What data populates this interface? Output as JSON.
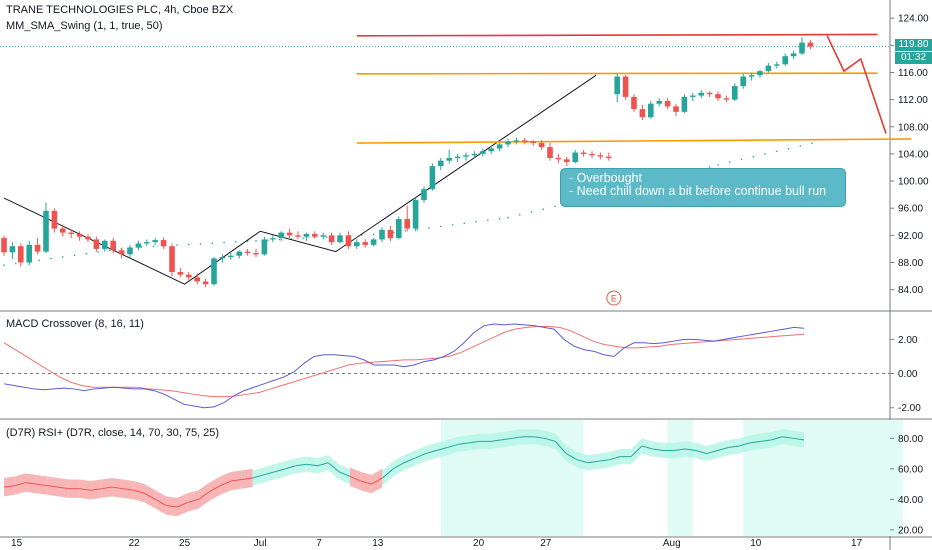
{
  "header": {
    "symbol_line": "TRANE TECHNOLOGIES PLC, 4h, Cboe BZX",
    "indicator_line": "MM_SMA_Swing (1, 1, true, 50)"
  },
  "price_tags": {
    "last_price": "119.80",
    "countdown": "01:32"
  },
  "annotation": {
    "line1": "- Overbought",
    "line2": "- Need chill down a bit before continue bull run"
  },
  "earnings_marker": "E",
  "panes": {
    "macd_title": "MACD Crossover (8, 16, 11)",
    "rsi_title": "(D7R) RSI+ (D7R, close, 14, 70, 30, 75, 25)"
  },
  "colors": {
    "up": "#26a69a",
    "down": "#ef5350",
    "resistance_top": "#e53935",
    "support_orange": "#ff9800",
    "projection": "#e53935",
    "macd_line": "#5b5bd6",
    "signal_line": "#f07070",
    "rsi_bull_fill": "#b2f5e6",
    "rsi_bear_fill": "#f5a3a3",
    "highlight_band": "#e0fbf4"
  },
  "chart_data": [
    {
      "type": "candlestick",
      "pane": "price",
      "ylim": [
        81,
        125.5
      ],
      "y_ticks": [
        84.0,
        88.0,
        92.0,
        96.0,
        100.0,
        104.0,
        108.0,
        112.0,
        116.0,
        120.0,
        124.0
      ],
      "x_ticks": [
        "15",
        "22",
        "25",
        "Jul",
        "7",
        "13",
        "20",
        "27",
        "Aug",
        "10",
        "17"
      ],
      "x_tick_index": [
        1.5,
        15.5,
        21.5,
        30.5,
        37.5,
        44.5,
        56.5,
        64.5,
        79.5,
        89.5,
        101.5
      ],
      "last_price": 119.8,
      "candles": [
        {
          "o": 91.6,
          "h": 92.0,
          "l": 89.0,
          "c": 89.5
        },
        {
          "o": 89.5,
          "h": 91.0,
          "l": 88.5,
          "c": 90.4
        },
        {
          "o": 90.4,
          "h": 90.8,
          "l": 87.4,
          "c": 88.0
        },
        {
          "o": 88.0,
          "h": 91.2,
          "l": 87.6,
          "c": 90.6
        },
        {
          "o": 90.6,
          "h": 91.6,
          "l": 89.2,
          "c": 89.6
        },
        {
          "o": 89.6,
          "h": 96.8,
          "l": 89.4,
          "c": 95.6
        },
        {
          "o": 95.6,
          "h": 96.0,
          "l": 92.4,
          "c": 93.0
        },
        {
          "o": 93.0,
          "h": 93.6,
          "l": 91.8,
          "c": 92.4
        },
        {
          "o": 92.4,
          "h": 92.8,
          "l": 91.6,
          "c": 92.2
        },
        {
          "o": 92.2,
          "h": 92.6,
          "l": 91.2,
          "c": 91.8
        },
        {
          "o": 91.8,
          "h": 92.2,
          "l": 91.0,
          "c": 91.4
        },
        {
          "o": 91.4,
          "h": 91.8,
          "l": 89.6,
          "c": 90.0
        },
        {
          "o": 90.0,
          "h": 91.4,
          "l": 89.6,
          "c": 91.2
        },
        {
          "o": 91.2,
          "h": 91.6,
          "l": 89.4,
          "c": 89.8
        },
        {
          "o": 89.8,
          "h": 90.2,
          "l": 88.6,
          "c": 89.2
        },
        {
          "o": 89.2,
          "h": 90.6,
          "l": 88.8,
          "c": 90.2
        },
        {
          "o": 90.2,
          "h": 91.2,
          "l": 89.8,
          "c": 90.8
        },
        {
          "o": 90.8,
          "h": 91.4,
          "l": 90.4,
          "c": 91.0
        },
        {
          "o": 91.0,
          "h": 91.6,
          "l": 90.6,
          "c": 91.3
        },
        {
          "o": 91.3,
          "h": 91.7,
          "l": 90.0,
          "c": 90.4
        },
        {
          "o": 90.4,
          "h": 90.8,
          "l": 86.0,
          "c": 86.6
        },
        {
          "o": 86.6,
          "h": 87.2,
          "l": 85.8,
          "c": 86.2
        },
        {
          "o": 86.2,
          "h": 86.6,
          "l": 85.4,
          "c": 85.8
        },
        {
          "o": 85.8,
          "h": 86.4,
          "l": 84.8,
          "c": 85.2
        },
        {
          "o": 85.2,
          "h": 85.6,
          "l": 84.4,
          "c": 84.8
        },
        {
          "o": 84.8,
          "h": 88.8,
          "l": 84.6,
          "c": 88.6
        },
        {
          "o": 88.6,
          "h": 89.2,
          "l": 88.0,
          "c": 88.8
        },
        {
          "o": 88.8,
          "h": 89.4,
          "l": 88.4,
          "c": 89.0
        },
        {
          "o": 89.0,
          "h": 89.8,
          "l": 88.6,
          "c": 89.6
        },
        {
          "o": 89.6,
          "h": 90.0,
          "l": 89.0,
          "c": 89.4
        },
        {
          "o": 89.4,
          "h": 90.0,
          "l": 88.8,
          "c": 89.2
        },
        {
          "o": 89.2,
          "h": 91.8,
          "l": 89.0,
          "c": 91.4
        },
        {
          "o": 91.4,
          "h": 92.0,
          "l": 91.0,
          "c": 91.6
        },
        {
          "o": 91.6,
          "h": 92.6,
          "l": 91.2,
          "c": 92.4
        },
        {
          "o": 92.4,
          "h": 93.0,
          "l": 91.6,
          "c": 92.0
        },
        {
          "o": 92.0,
          "h": 92.6,
          "l": 91.4,
          "c": 91.8
        },
        {
          "o": 91.8,
          "h": 92.4,
          "l": 91.2,
          "c": 92.2
        },
        {
          "o": 92.2,
          "h": 92.6,
          "l": 91.6,
          "c": 91.8
        },
        {
          "o": 91.8,
          "h": 92.4,
          "l": 91.4,
          "c": 92.0
        },
        {
          "o": 92.0,
          "h": 92.4,
          "l": 90.6,
          "c": 91.0
        },
        {
          "o": 91.0,
          "h": 92.4,
          "l": 90.8,
          "c": 92.0
        },
        {
          "o": 92.0,
          "h": 92.6,
          "l": 90.0,
          "c": 90.4
        },
        {
          "o": 90.4,
          "h": 91.4,
          "l": 90.0,
          "c": 91.0
        },
        {
          "o": 91.0,
          "h": 91.4,
          "l": 90.2,
          "c": 90.6
        },
        {
          "o": 90.6,
          "h": 91.6,
          "l": 90.4,
          "c": 91.4
        },
        {
          "o": 91.4,
          "h": 93.2,
          "l": 91.0,
          "c": 92.8
        },
        {
          "o": 92.8,
          "h": 93.4,
          "l": 91.2,
          "c": 91.6
        },
        {
          "o": 91.6,
          "h": 94.8,
          "l": 91.4,
          "c": 94.4
        },
        {
          "o": 94.4,
          "h": 96.4,
          "l": 92.6,
          "c": 93.0
        },
        {
          "o": 93.0,
          "h": 97.6,
          "l": 92.6,
          "c": 97.2
        },
        {
          "o": 97.2,
          "h": 99.2,
          "l": 96.8,
          "c": 98.8
        },
        {
          "o": 98.8,
          "h": 102.6,
          "l": 98.6,
          "c": 102.2
        },
        {
          "o": 102.2,
          "h": 103.4,
          "l": 101.6,
          "c": 103.0
        },
        {
          "o": 103.0,
          "h": 104.6,
          "l": 102.6,
          "c": 103.4
        },
        {
          "o": 103.4,
          "h": 104.0,
          "l": 102.8,
          "c": 103.6
        },
        {
          "o": 103.6,
          "h": 104.2,
          "l": 103.0,
          "c": 103.8
        },
        {
          "o": 103.8,
          "h": 104.4,
          "l": 103.4,
          "c": 104.0
        },
        {
          "o": 104.0,
          "h": 104.8,
          "l": 103.6,
          "c": 104.4
        },
        {
          "o": 104.4,
          "h": 105.2,
          "l": 104.0,
          "c": 104.8
        },
        {
          "o": 104.8,
          "h": 105.6,
          "l": 104.4,
          "c": 105.4
        },
        {
          "o": 105.4,
          "h": 106.2,
          "l": 105.0,
          "c": 105.8
        },
        {
          "o": 105.8,
          "h": 106.4,
          "l": 105.4,
          "c": 106.0
        },
        {
          "o": 106.0,
          "h": 106.4,
          "l": 105.4,
          "c": 105.8
        },
        {
          "o": 105.8,
          "h": 106.0,
          "l": 105.2,
          "c": 105.6
        },
        {
          "o": 105.6,
          "h": 106.0,
          "l": 104.6,
          "c": 105.0
        },
        {
          "o": 105.0,
          "h": 105.6,
          "l": 103.0,
          "c": 103.4
        },
        {
          "o": 103.4,
          "h": 104.0,
          "l": 102.6,
          "c": 103.2
        },
        {
          "o": 103.2,
          "h": 103.6,
          "l": 102.2,
          "c": 102.8
        },
        {
          "o": 102.8,
          "h": 104.6,
          "l": 102.6,
          "c": 104.2
        },
        {
          "o": 104.2,
          "h": 104.6,
          "l": 103.6,
          "c": 104.0
        },
        {
          "o": 104.0,
          "h": 104.4,
          "l": 103.4,
          "c": 103.8
        },
        {
          "o": 103.8,
          "h": 104.2,
          "l": 103.2,
          "c": 103.6
        },
        {
          "o": 103.6,
          "h": 104.2,
          "l": 103.0,
          "c": 103.4
        },
        {
          "o": 112.8,
          "h": 115.8,
          "l": 111.6,
          "c": 115.4
        },
        {
          "o": 115.4,
          "h": 115.6,
          "l": 112.0,
          "c": 112.4
        },
        {
          "o": 112.4,
          "h": 112.8,
          "l": 110.2,
          "c": 110.6
        },
        {
          "o": 110.6,
          "h": 111.2,
          "l": 109.0,
          "c": 109.4
        },
        {
          "o": 109.4,
          "h": 111.8,
          "l": 109.2,
          "c": 111.4
        },
        {
          "o": 111.4,
          "h": 112.2,
          "l": 111.0,
          "c": 111.8
        },
        {
          "o": 111.8,
          "h": 112.2,
          "l": 110.6,
          "c": 111.0
        },
        {
          "o": 111.0,
          "h": 111.4,
          "l": 109.6,
          "c": 110.2
        },
        {
          "o": 110.2,
          "h": 112.8,
          "l": 110.0,
          "c": 112.4
        },
        {
          "o": 112.4,
          "h": 113.0,
          "l": 111.8,
          "c": 112.6
        },
        {
          "o": 112.6,
          "h": 113.4,
          "l": 112.2,
          "c": 113.0
        },
        {
          "o": 113.0,
          "h": 113.2,
          "l": 112.4,
          "c": 112.8
        },
        {
          "o": 112.8,
          "h": 113.2,
          "l": 111.8,
          "c": 112.2
        },
        {
          "o": 112.2,
          "h": 112.6,
          "l": 111.6,
          "c": 112.0
        },
        {
          "o": 112.0,
          "h": 114.4,
          "l": 111.8,
          "c": 114.0
        },
        {
          "o": 114.0,
          "h": 115.8,
          "l": 113.6,
          "c": 115.4
        },
        {
          "o": 115.4,
          "h": 116.0,
          "l": 114.8,
          "c": 115.6
        },
        {
          "o": 115.6,
          "h": 116.4,
          "l": 115.2,
          "c": 116.2
        },
        {
          "o": 116.2,
          "h": 117.4,
          "l": 116.0,
          "c": 117.0
        },
        {
          "o": 117.0,
          "h": 117.6,
          "l": 116.6,
          "c": 117.2
        },
        {
          "o": 117.2,
          "h": 118.8,
          "l": 117.0,
          "c": 118.4
        },
        {
          "o": 118.4,
          "h": 119.2,
          "l": 118.0,
          "c": 118.8
        },
        {
          "o": 118.8,
          "h": 121.2,
          "l": 118.6,
          "c": 120.4
        },
        {
          "o": 120.4,
          "h": 120.8,
          "l": 119.4,
          "c": 119.8
        }
      ],
      "swing_line": [
        [
          0,
          97.5
        ],
        [
          21.5,
          84.8
        ],
        [
          30.5,
          92.6
        ],
        [
          39.5,
          89.6
        ],
        [
          70.5,
          115.6
        ]
      ],
      "dotted_sma": [
        [
          0,
          87.6
        ],
        [
          15,
          90.2
        ],
        [
          30,
          91.2
        ],
        [
          45,
          92.2
        ],
        [
          60,
          94.6
        ],
        [
          70,
          97.6
        ],
        [
          85,
          102.4
        ],
        [
          97,
          105.8
        ]
      ],
      "resistance_line": {
        "from": [
          42,
          121.4
        ],
        "to": [
          104,
          121.6
        ]
      },
      "support_line_upper": {
        "from": [
          42,
          115.8
        ],
        "to": [
          104,
          115.9
        ]
      },
      "support_line_lower": {
        "from": [
          42,
          105.6
        ],
        "to": [
          108,
          106.2
        ]
      },
      "projection_path": [
        [
          98,
          121.4
        ],
        [
          100,
          116.2
        ],
        [
          102,
          118.0
        ],
        [
          105,
          107.0
        ]
      ]
    },
    {
      "type": "line",
      "pane": "macd",
      "ylim": [
        -2.6,
        3.6
      ],
      "y_ticks": [
        -2.0,
        0.0,
        2.0
      ],
      "series": [
        {
          "values": [
            -0.6,
            -0.7,
            -0.8,
            -0.9,
            -0.95,
            -0.9,
            -0.85,
            -0.9,
            -1.0,
            -0.9,
            -0.85,
            -0.8,
            -0.85,
            -0.9,
            -0.9,
            -1.0,
            -1.2,
            -1.5,
            -1.8,
            -1.9,
            -2.0,
            -1.95,
            -1.7,
            -1.3,
            -1.0,
            -0.8,
            -0.6,
            -0.4,
            -0.2,
            0.1,
            0.6,
            1.0,
            1.1,
            1.1,
            1.05,
            1.0,
            0.8,
            0.5,
            0.5,
            0.5,
            0.4,
            0.5,
            0.7,
            0.8,
            1.0,
            1.3,
            1.8,
            2.4,
            2.8,
            2.9,
            2.85,
            2.9,
            2.85,
            2.8,
            2.7,
            2.6,
            2.0,
            1.6,
            1.4,
            1.3,
            1.1,
            1.0,
            1.5,
            1.8,
            1.8,
            1.75,
            1.8,
            1.9,
            2.0,
            2.0,
            1.95,
            1.9,
            2.0,
            2.1,
            2.2,
            2.3,
            2.4,
            2.5,
            2.6,
            2.7,
            2.65
          ]
        },
        {
          "values": [
            1.8,
            1.4,
            1.0,
            0.6,
            0.2,
            -0.2,
            -0.5,
            -0.7,
            -0.8,
            -0.8,
            -0.8,
            -0.8,
            -0.8,
            -0.9,
            -0.95,
            -1.0,
            -1.1,
            -1.2,
            -1.3,
            -1.35,
            -1.35,
            -1.3,
            -1.2,
            -1.1,
            -0.9,
            -0.7,
            -0.5,
            -0.3,
            -0.1,
            0.1,
            0.3,
            0.5,
            0.6,
            0.65,
            0.7,
            0.75,
            0.8,
            0.8,
            0.85,
            0.9,
            1.0,
            1.2,
            1.5,
            1.8,
            2.1,
            2.4,
            2.6,
            2.7,
            2.75,
            2.75,
            2.7,
            2.5,
            2.2,
            1.9,
            1.7,
            1.6,
            1.5,
            1.5,
            1.55,
            1.6,
            1.7,
            1.75,
            1.8,
            1.85,
            1.9,
            1.95,
            2.0,
            2.05,
            2.1,
            2.15,
            2.2,
            2.25,
            2.3
          ]
        }
      ]
    },
    {
      "type": "area",
      "pane": "rsi",
      "ylim": [
        16,
        92
      ],
      "y_ticks": [
        20.0,
        40.0,
        60.0,
        80.0
      ],
      "series": [
        {
          "values": [
            48,
            49,
            51,
            50,
            49,
            48,
            47,
            47,
            46,
            47,
            48,
            47,
            46,
            44,
            40,
            36,
            35,
            38,
            40,
            45,
            49,
            52,
            53,
            54,
            56,
            58,
            60,
            62,
            63,
            62,
            64,
            58,
            55,
            52,
            50,
            54,
            60,
            64,
            67,
            70,
            72,
            74,
            76,
            77,
            78,
            78,
            79,
            80,
            81,
            81,
            80,
            78,
            70,
            66,
            64,
            65,
            66,
            68,
            68,
            75,
            73,
            72,
            72,
            73,
            72,
            70,
            72,
            74,
            75,
            77,
            78,
            79,
            81,
            80,
            79
          ]
        }
      ],
      "highlight_ranges": [
        [
          52,
          69
        ],
        [
          79,
          82
        ],
        [
          88,
          107
        ]
      ]
    }
  ]
}
